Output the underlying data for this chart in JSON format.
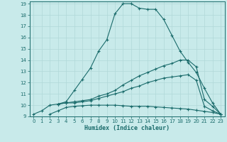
{
  "bg_color": "#c8eaea",
  "grid_color": "#b0d8d8",
  "line_color": "#1a6b6b",
  "xlabel": "Humidex (Indice chaleur)",
  "xlim": [
    -0.5,
    23.5
  ],
  "ylim": [
    9,
    19.2
  ],
  "xticks": [
    0,
    1,
    2,
    3,
    4,
    5,
    6,
    7,
    8,
    9,
    10,
    11,
    12,
    13,
    14,
    15,
    16,
    17,
    18,
    19,
    20,
    21,
    22,
    23
  ],
  "yticks": [
    9,
    10,
    11,
    12,
    13,
    14,
    15,
    16,
    17,
    18,
    19
  ],
  "line1_x": [
    0,
    1,
    2,
    3,
    4,
    5,
    6,
    7,
    8,
    9,
    10,
    11,
    12,
    13,
    14,
    15,
    16,
    17,
    18,
    19,
    20,
    21,
    22,
    23
  ],
  "line1_y": [
    9.2,
    9.5,
    10.0,
    10.1,
    10.3,
    11.3,
    12.3,
    13.3,
    14.8,
    15.8,
    18.1,
    19.0,
    19.0,
    18.6,
    18.5,
    18.5,
    17.6,
    16.2,
    14.8,
    13.8,
    12.9,
    11.5,
    10.2,
    9.2
  ],
  "line2_x": [
    3,
    4,
    5,
    6,
    7,
    8,
    9,
    10,
    11,
    12,
    13,
    14,
    15,
    16,
    17,
    18,
    19,
    20,
    21,
    22,
    23
  ],
  "line2_y": [
    10.1,
    10.2,
    10.3,
    10.4,
    10.5,
    10.8,
    11.0,
    11.3,
    11.8,
    12.2,
    12.6,
    12.9,
    13.2,
    13.5,
    13.7,
    14.0,
    14.0,
    13.4,
    10.5,
    9.9,
    9.2
  ],
  "line3_x": [
    3,
    4,
    5,
    6,
    7,
    8,
    9,
    10,
    11,
    12,
    13,
    14,
    15,
    16,
    17,
    18,
    19,
    20,
    21,
    22,
    23
  ],
  "line3_y": [
    10.1,
    10.2,
    10.2,
    10.3,
    10.4,
    10.6,
    10.8,
    11.0,
    11.2,
    11.5,
    11.7,
    12.0,
    12.2,
    12.4,
    12.5,
    12.6,
    12.7,
    12.2,
    9.9,
    9.5,
    9.2
  ],
  "line4_x": [
    2,
    3,
    4,
    5,
    6,
    7,
    8,
    9,
    10,
    11,
    12,
    13,
    14,
    15,
    16,
    17,
    18,
    19,
    20,
    21,
    22,
    23
  ],
  "line4_y": [
    9.2,
    9.5,
    9.8,
    9.9,
    9.95,
    10.0,
    10.0,
    10.0,
    10.0,
    9.95,
    9.9,
    9.9,
    9.9,
    9.85,
    9.8,
    9.75,
    9.7,
    9.65,
    9.55,
    9.45,
    9.35,
    9.2
  ]
}
